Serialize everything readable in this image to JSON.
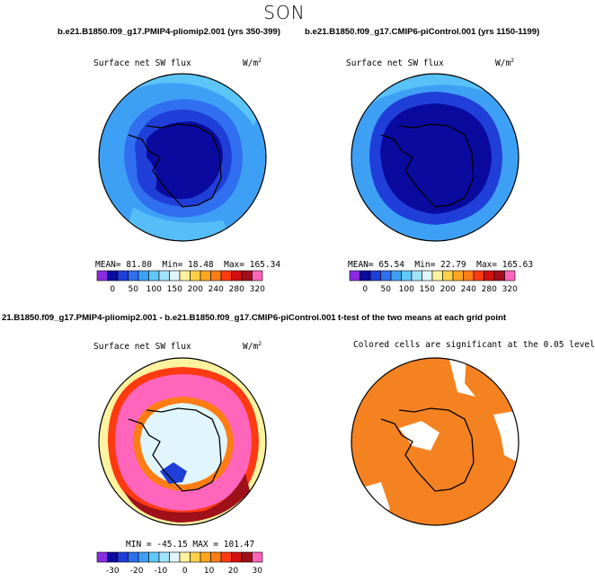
{
  "season": "SON",
  "panels": [
    {
      "title": "b.e21.B1850.f09_g17.PMIP4-pliomip2.001 (yrs 350-399)",
      "variable": "Surface net SW flux",
      "units": "W/m",
      "units_exp": "2",
      "stats": {
        "mean_label": "MEAN=",
        "mean": "81.80",
        "min_label": "Min=",
        "min": "18.48",
        "max_label": "Max=",
        "max": "165.34"
      },
      "colorbar": {
        "colors": [
          "#8a2be2",
          "#0a0a9e",
          "#1f3fd8",
          "#2f6ff0",
          "#3ea0f5",
          "#5fc9f8",
          "#a0e3fa",
          "#e0f6fc",
          "#fff3a0",
          "#ffd24a",
          "#ffa51e",
          "#ff7d14",
          "#ff3a10",
          "#d40f10",
          "#a0101a",
          "#ff66bb"
        ],
        "labels": [
          "0",
          "50",
          "100",
          "150",
          "200",
          "240",
          "280",
          "320"
        ]
      }
    },
    {
      "title": "b.e21.B1850.f09_g17.CMIP6-piControl.001 (yrs 1150-1199)",
      "variable": "Surface net SW flux",
      "units": "W/m",
      "units_exp": "2",
      "stats": {
        "mean_label": "MEAN=",
        "mean": "65.54",
        "min_label": "Min=",
        "min": "22.79",
        "max_label": "Max=",
        "max": "165.63"
      },
      "colorbar": {
        "colors": [
          "#8a2be2",
          "#0a0a9e",
          "#1f3fd8",
          "#2f6ff0",
          "#3ea0f5",
          "#5fc9f8",
          "#a0e3fa",
          "#e0f6fc",
          "#fff3a0",
          "#ffd24a",
          "#ffa51e",
          "#ff7d14",
          "#ff3a10",
          "#d40f10",
          "#a0101a",
          "#ff66bb"
        ],
        "labels": [
          "0",
          "50",
          "100",
          "150",
          "200",
          "240",
          "280",
          "320"
        ]
      }
    },
    {
      "title": "21.B1850.f09_g17.PMIP4-pliomip2.001 - b.e21.B1850.f09_g17.CMIP6-piControl.001",
      "variable": "Surface net SW flux",
      "units": "W/m",
      "units_exp": "2",
      "stats": {
        "min_label": "MIN =",
        "min": "-45.15",
        "max_label": "MAX =",
        "max": "101.47"
      },
      "colorbar": {
        "colors": [
          "#8a2be2",
          "#0a0a9e",
          "#1f3fd8",
          "#2f6ff0",
          "#3ea0f5",
          "#5fc9f8",
          "#a0e3fa",
          "#e0f6fc",
          "#fff3a0",
          "#ffd24a",
          "#ffa51e",
          "#ff7d14",
          "#ff3a10",
          "#d40f10",
          "#a0101a",
          "#ff66bb"
        ],
        "labels": [
          "-30",
          "-20",
          "-10",
          "0",
          "10",
          "20",
          "30"
        ]
      }
    },
    {
      "title": "t-test of the two means at each grid point",
      "subtitle": "Colored cells are significant at the 0.05 level",
      "color": "#f58220"
    }
  ],
  "chart_data": [
    {
      "type": "heatmap",
      "projection": "south-polar-stereographic",
      "title": "b.e21.B1850.f09_g17.PMIP4-pliomip2.001 (yrs 350-399)",
      "variable": "Surface net SW flux",
      "units": "W/m2",
      "mean": 81.8,
      "min": 18.48,
      "max": 165.34,
      "colorbar_ticks": [
        0,
        50,
        100,
        150,
        200,
        240,
        280,
        320
      ]
    },
    {
      "type": "heatmap",
      "projection": "south-polar-stereographic",
      "title": "b.e21.B1850.f09_g17.CMIP6-piControl.001 (yrs 1150-1199)",
      "variable": "Surface net SW flux",
      "units": "W/m2",
      "mean": 65.54,
      "min": 22.79,
      "max": 165.63,
      "colorbar_ticks": [
        0,
        50,
        100,
        150,
        200,
        240,
        280,
        320
      ]
    },
    {
      "type": "heatmap",
      "projection": "south-polar-stereographic",
      "title": "21.B1850.f09_g17.PMIP4-pliomip2.001 - b.e21.B1850.f09_g17.CMIP6-piControl.001",
      "variable": "Surface net SW flux",
      "units": "W/m2",
      "min": -45.15,
      "max": 101.47,
      "colorbar_ticks": [
        -30,
        -20,
        -10,
        0,
        10,
        20,
        30
      ]
    },
    {
      "type": "heatmap",
      "projection": "south-polar-stereographic",
      "title": "t-test of the two means at each grid point",
      "subtitle": "Colored cells are significant at the 0.05 level",
      "significance_level": 0.05
    }
  ]
}
